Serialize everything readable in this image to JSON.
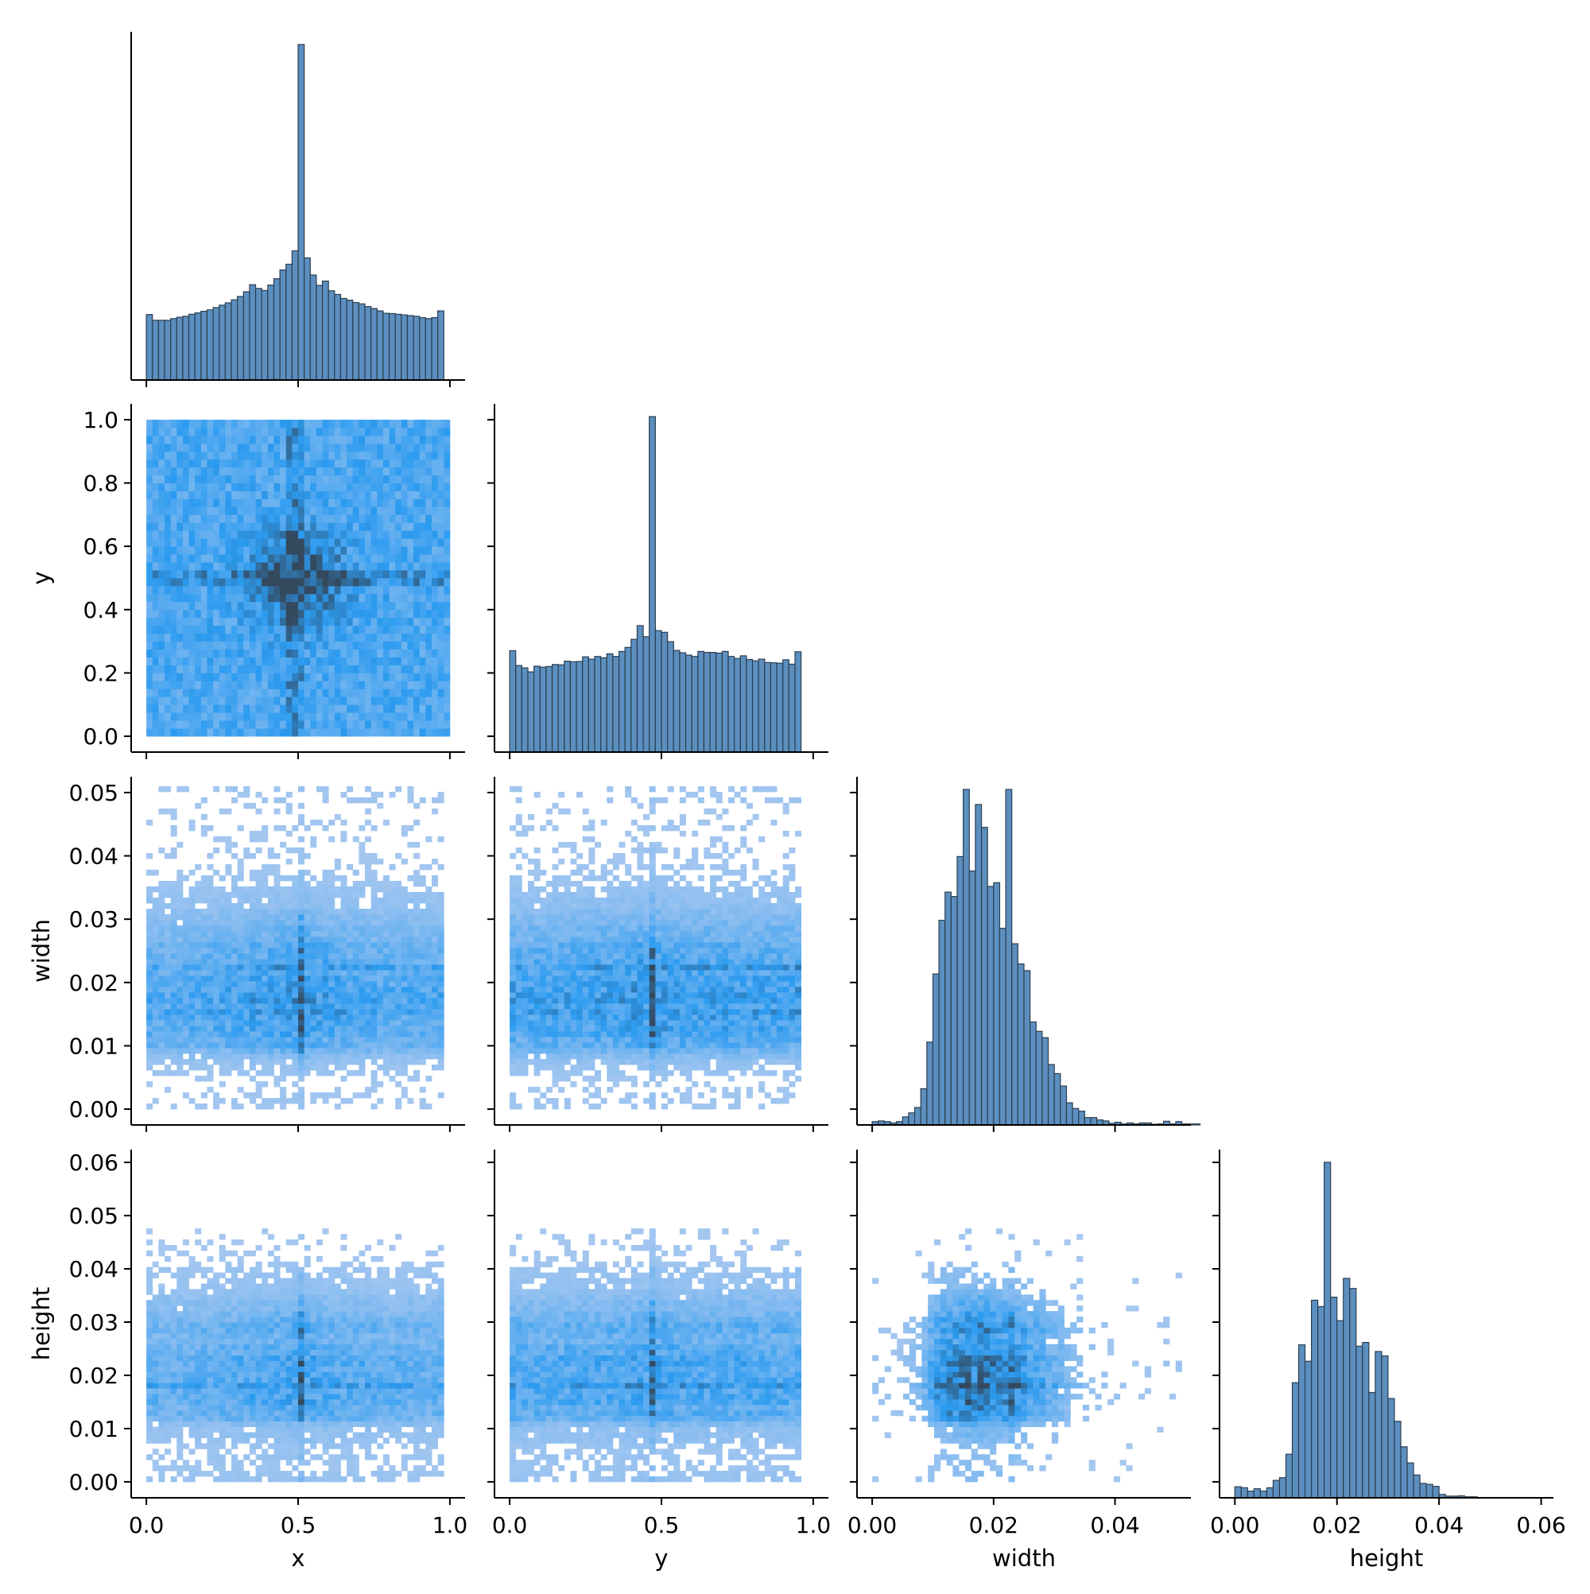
{
  "chart_data": {
    "type": "pairplot",
    "variables": [
      "x",
      "y",
      "width",
      "height"
    ],
    "layout": "corner",
    "diagonal": "histogram",
    "off_diagonal": "2d-histogram",
    "grid": false,
    "colors": {
      "hist_fill": "#5b8fbf",
      "hist_edge": "#2c3e50",
      "heat_low": "#a8c8f0",
      "heat_mid": "#2c9bf0",
      "heat_high": "#34495e"
    },
    "axes": {
      "x": {
        "label": "x",
        "range": [
          -0.05,
          1.05
        ],
        "ticks": [
          0.0,
          0.5,
          1.0
        ],
        "tick_labels": [
          "0.0",
          "0.5",
          "1.0"
        ]
      },
      "y": {
        "label": "y",
        "range": [
          -0.05,
          1.05
        ],
        "ticks": [
          0.0,
          0.2,
          0.4,
          0.6,
          0.8,
          1.0
        ],
        "tick_labels": [
          "0.0",
          "0.2",
          "0.4",
          "0.6",
          "0.8",
          "1.0"
        ],
        "col_ticks": [
          0.0,
          0.5,
          1.0
        ],
        "col_tick_labels": [
          "0.0",
          "0.5",
          "1.0"
        ]
      },
      "width": {
        "label": "width",
        "range": [
          -0.0025,
          0.0525
        ],
        "ticks": [
          0.0,
          0.01,
          0.02,
          0.03,
          0.04,
          0.05
        ],
        "tick_labels": [
          "0.00",
          "0.01",
          "0.02",
          "0.03",
          "0.04",
          "0.05"
        ],
        "col_ticks": [
          0.0,
          0.02,
          0.04
        ],
        "col_tick_labels": [
          "0.00",
          "0.02",
          "0.04"
        ]
      },
      "height": {
        "label": "height",
        "range": [
          -0.003,
          0.0624
        ],
        "ticks": [
          0.0,
          0.01,
          0.02,
          0.03,
          0.04,
          0.05,
          0.06
        ],
        "tick_labels": [
          "0.00",
          "0.01",
          "0.02",
          "0.03",
          "0.04",
          "0.05",
          "0.06"
        ],
        "col_ticks": [
          0.0,
          0.02,
          0.04,
          0.06
        ],
        "col_tick_labels": [
          "0.00",
          "0.02",
          "0.04",
          "0.06"
        ]
      }
    },
    "histograms": {
      "x": {
        "bin_start": 0.0,
        "bin_width": 0.02,
        "counts": [
          195,
          178,
          178,
          178,
          183,
          187,
          190,
          196,
          200,
          205,
          209,
          216,
          223,
          230,
          239,
          249,
          263,
          284,
          273,
          267,
          283,
          302,
          328,
          345,
          385,
          1000,
          364,
          313,
          282,
          295,
          266,
          255,
          243,
          238,
          231,
          227,
          219,
          213,
          206,
          199,
          198,
          196,
          194,
          192,
          190,
          186,
          183,
          186,
          206
        ]
      },
      "y": {
        "bin_start": 0.0,
        "bin_width": 0.02,
        "counts": [
          302,
          258,
          251,
          239,
          256,
          253,
          255,
          261,
          260,
          271,
          269,
          270,
          284,
          277,
          285,
          281,
          293,
          285,
          300,
          312,
          336,
          377,
          344,
          1000,
          362,
          357,
          329,
          303,
          296,
          289,
          285,
          300,
          297,
          297,
          295,
          300,
          285,
          279,
          287,
          276,
          272,
          277,
          267,
          266,
          265,
          275,
          262,
          299
        ]
      },
      "width": {
        "bin_start": 0.0,
        "bin_width": 0.001,
        "counts": [
          10,
          12,
          10,
          6,
          10,
          24,
          36,
          52,
          108,
          247,
          450,
          610,
          694,
          681,
          800,
          1000,
          757,
          955,
          887,
          711,
          722,
          586,
          1000,
          540,
          480,
          460,
          307,
          279,
          260,
          180,
          153,
          116,
          66,
          49,
          41,
          22,
          22,
          15,
          12,
          5,
          8,
          3,
          6,
          3,
          6,
          6,
          2,
          3,
          11,
          3,
          10,
          3,
          3,
          3
        ]
      },
      "height": {
        "bin_start": 0.0,
        "bin_width": 0.00125,
        "counts": [
          33,
          30,
          20,
          27,
          20,
          30,
          52,
          60,
          130,
          343,
          456,
          407,
          589,
          570,
          1000,
          598,
          528,
          654,
          624,
          452,
          463,
          314,
          436,
          423,
          296,
          228,
          152,
          104,
          68,
          43,
          40,
          34,
          10,
          5,
          5,
          6,
          3,
          3,
          0,
          0,
          0,
          0,
          0,
          0,
          0,
          0,
          0,
          0
        ]
      }
    }
  }
}
